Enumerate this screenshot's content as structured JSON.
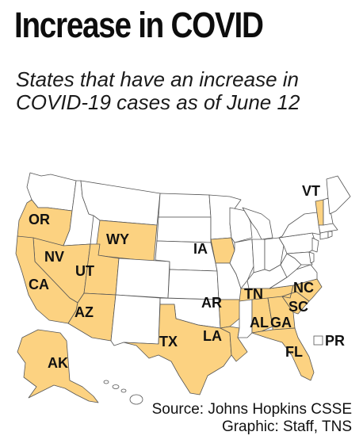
{
  "title": "Increase in COVID",
  "subtitle": "States that have an increase in COVID-19 cases as of June 12",
  "legend": {
    "label": "PR"
  },
  "states_with_increase": [
    "OR",
    "NV",
    "CA",
    "UT",
    "AZ",
    "WY",
    "IA",
    "TX",
    "AR",
    "LA",
    "TN",
    "NC",
    "SC",
    "AL",
    "GA",
    "FL",
    "AK",
    "VT"
  ],
  "colors": {
    "increase": "#fcd281",
    "other": "#ffffff",
    "border": "#555555"
  },
  "source": "Source: Johns Hopkins CSSE",
  "graphic": "Graphic: Staff, TNS"
}
